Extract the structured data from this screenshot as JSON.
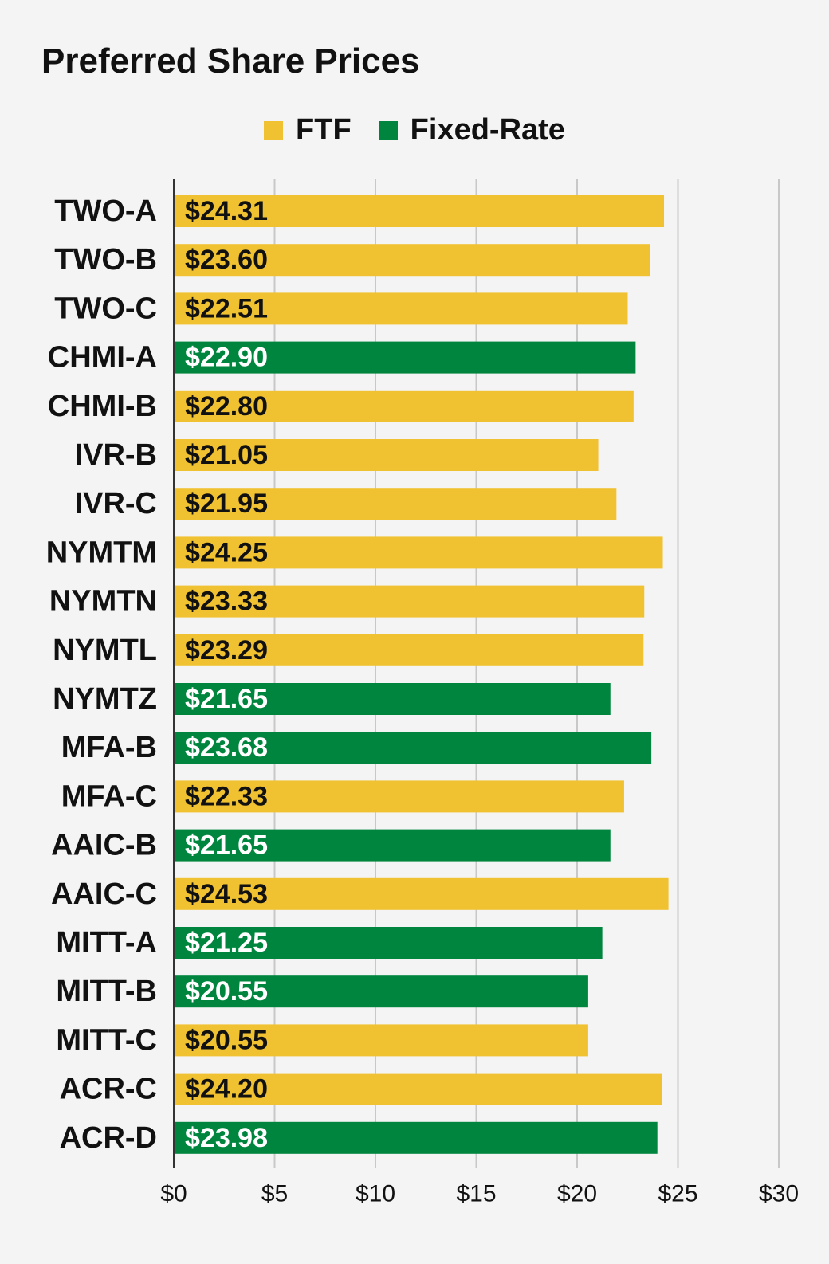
{
  "chart_data": {
    "type": "bar",
    "orientation": "horizontal",
    "title": "Preferred Share Prices",
    "xlabel": "",
    "ylabel": "",
    "xlim": [
      0,
      30
    ],
    "ticks": [
      0,
      5,
      10,
      15,
      20,
      25,
      30
    ],
    "tick_labels": [
      "$0",
      "$5",
      "$10",
      "$15",
      "$20",
      "$25",
      "$30"
    ],
    "grid": true,
    "legend": {
      "placement": "top-center",
      "entries": [
        {
          "name": "FTF",
          "color": "#f0c232"
        },
        {
          "name": "Fixed-Rate",
          "color": "#00853e"
        }
      ]
    },
    "categories": [
      "TWO-A",
      "TWO-B",
      "TWO-C",
      "CHMI-A",
      "CHMI-B",
      "IVR-B",
      "IVR-C",
      "NYMTM",
      "NYMTN",
      "NYMTL",
      "NYMTZ",
      "MFA-B",
      "MFA-C",
      "AAIC-B",
      "AAIC-C",
      "MITT-A",
      "MITT-B",
      "MITT-C",
      "ACR-C",
      "ACR-D"
    ],
    "values": [
      24.31,
      23.6,
      22.51,
      22.9,
      22.8,
      21.05,
      21.95,
      24.25,
      23.33,
      23.29,
      21.65,
      23.68,
      22.33,
      21.65,
      24.53,
      21.25,
      20.55,
      20.55,
      24.2,
      23.98
    ],
    "value_labels": [
      "$24.31",
      "$23.60",
      "$22.51",
      "$22.90",
      "$22.80",
      "$21.05",
      "$21.95",
      "$24.25",
      "$23.33",
      "$23.29",
      "$21.65",
      "$23.68",
      "$22.33",
      "$21.65",
      "$24.53",
      "$21.25",
      "$20.55",
      "$20.55",
      "$24.20",
      "$23.98"
    ],
    "series_type": [
      "FTF",
      "FTF",
      "FTF",
      "Fixed-Rate",
      "FTF",
      "FTF",
      "FTF",
      "FTF",
      "FTF",
      "FTF",
      "Fixed-Rate",
      "Fixed-Rate",
      "FTF",
      "Fixed-Rate",
      "FTF",
      "Fixed-Rate",
      "Fixed-Rate",
      "FTF",
      "FTF",
      "Fixed-Rate"
    ],
    "colors": {
      "FTF": "#f0c232",
      "Fixed-Rate": "#00853e",
      "grid": "#c8c8c8",
      "axis": "#333333",
      "label_on_ftf": "#111111",
      "label_on_fixed": "#ffffff"
    }
  }
}
